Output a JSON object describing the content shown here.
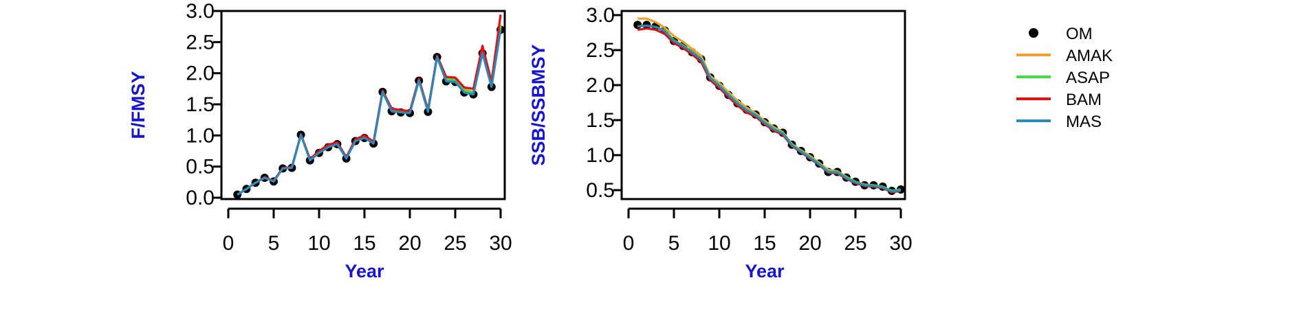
{
  "colors": {
    "axis_title": "#1414d2",
    "OM": "#000000",
    "AMAK": "#f0a030",
    "ASAP": "#44dd44",
    "BAM": "#e01010",
    "MAS": "#2c88b8"
  },
  "legend": {
    "placement": "right",
    "entries": [
      {
        "name": "OM",
        "kind": "point",
        "color_key": "OM"
      },
      {
        "name": "AMAK",
        "kind": "line",
        "color_key": "AMAK"
      },
      {
        "name": "ASAP",
        "kind": "line",
        "color_key": "ASAP"
      },
      {
        "name": "BAM",
        "kind": "line",
        "color_key": "BAM"
      },
      {
        "name": "MAS",
        "kind": "line",
        "color_key": "MAS"
      }
    ]
  },
  "chart_data": [
    {
      "type": "line",
      "xlabel": "Year",
      "ylabel": "F/FMSY",
      "xlim": [
        0,
        30
      ],
      "ylim": [
        0,
        3
      ],
      "xticks": [
        "0",
        "5",
        "10",
        "15",
        "20",
        "25",
        "30"
      ],
      "yticks": [
        "0.0",
        "0.5",
        "1.0",
        "1.5",
        "2.0",
        "2.5",
        "3.0"
      ],
      "grid": false,
      "x": [
        1,
        2,
        3,
        4,
        5,
        6,
        7,
        8,
        9,
        10,
        11,
        12,
        13,
        14,
        15,
        16,
        17,
        18,
        19,
        20,
        21,
        22,
        23,
        24,
        25,
        26,
        27,
        28,
        29,
        30
      ],
      "series": [
        {
          "name": "OM",
          "kind": "point",
          "values": [
            0.05,
            0.14,
            0.24,
            0.32,
            0.26,
            0.47,
            0.48,
            1.01,
            0.6,
            0.72,
            0.81,
            0.86,
            0.63,
            0.91,
            0.96,
            0.87,
            1.7,
            1.39,
            1.37,
            1.36,
            1.88,
            1.38,
            2.26,
            1.87,
            1.86,
            1.69,
            1.66,
            2.32,
            1.78,
            2.7
          ]
        },
        {
          "name": "AMAK",
          "kind": "line",
          "values": [
            0.05,
            0.14,
            0.24,
            0.32,
            0.27,
            0.47,
            0.49,
            1.01,
            0.61,
            0.73,
            0.83,
            0.88,
            0.64,
            0.93,
            0.99,
            0.88,
            1.71,
            1.42,
            1.4,
            1.38,
            1.9,
            1.4,
            2.27,
            1.92,
            1.9,
            1.74,
            1.7,
            2.38,
            1.82,
            2.78
          ]
        },
        {
          "name": "ASAP",
          "kind": "line",
          "values": [
            0.05,
            0.14,
            0.24,
            0.32,
            0.27,
            0.47,
            0.49,
            1.01,
            0.61,
            0.73,
            0.82,
            0.87,
            0.64,
            0.92,
            0.98,
            0.88,
            1.7,
            1.41,
            1.39,
            1.37,
            1.89,
            1.39,
            2.27,
            1.9,
            1.89,
            1.72,
            1.69,
            2.36,
            1.8,
            2.75
          ]
        },
        {
          "name": "BAM",
          "kind": "line",
          "values": [
            0.05,
            0.14,
            0.24,
            0.33,
            0.27,
            0.48,
            0.49,
            1.02,
            0.62,
            0.75,
            0.85,
            0.89,
            0.65,
            0.94,
            1.0,
            0.9,
            1.72,
            1.43,
            1.41,
            1.39,
            1.91,
            1.41,
            2.28,
            1.94,
            1.93,
            1.77,
            1.75,
            2.44,
            1.86,
            2.94
          ]
        },
        {
          "name": "MAS",
          "kind": "line",
          "values": [
            0.05,
            0.14,
            0.24,
            0.32,
            0.26,
            0.47,
            0.48,
            1.01,
            0.6,
            0.72,
            0.81,
            0.86,
            0.63,
            0.91,
            0.96,
            0.87,
            1.7,
            1.39,
            1.37,
            1.36,
            1.88,
            1.38,
            2.26,
            1.87,
            1.86,
            1.69,
            1.66,
            2.32,
            1.78,
            2.7
          ]
        }
      ]
    },
    {
      "type": "line",
      "xlabel": "Year",
      "ylabel": "SSB/SSBMSY",
      "xlim": [
        0,
        30
      ],
      "ylim": [
        0.5,
        3
      ],
      "xticks": [
        "0",
        "5",
        "10",
        "15",
        "20",
        "25",
        "30"
      ],
      "yticks": [
        "0.5",
        "1.0",
        "1.5",
        "2.0",
        "2.5",
        "3.0"
      ],
      "grid": false,
      "x": [
        1,
        2,
        3,
        4,
        5,
        6,
        7,
        8,
        9,
        10,
        11,
        12,
        13,
        14,
        15,
        16,
        17,
        18,
        19,
        20,
        21,
        22,
        23,
        24,
        25,
        26,
        27,
        28,
        29,
        30
      ],
      "series": [
        {
          "name": "OM",
          "kind": "point",
          "values": [
            2.86,
            2.86,
            2.84,
            2.78,
            2.63,
            2.56,
            2.47,
            2.37,
            2.11,
            1.99,
            1.86,
            1.74,
            1.65,
            1.58,
            1.47,
            1.38,
            1.32,
            1.15,
            1.06,
            0.97,
            0.88,
            0.76,
            0.76,
            0.68,
            0.62,
            0.57,
            0.57,
            0.55,
            0.49,
            0.51
          ]
        },
        {
          "name": "AMAK",
          "kind": "line",
          "values": [
            2.95,
            2.95,
            2.9,
            2.82,
            2.7,
            2.62,
            2.52,
            2.42,
            2.13,
            2.03,
            1.9,
            1.78,
            1.68,
            1.6,
            1.49,
            1.4,
            1.33,
            1.16,
            1.07,
            0.99,
            0.89,
            0.79,
            0.77,
            0.69,
            0.62,
            0.58,
            0.57,
            0.55,
            0.49,
            0.5
          ]
        },
        {
          "name": "ASAP",
          "kind": "line",
          "values": [
            2.84,
            2.85,
            2.83,
            2.78,
            2.64,
            2.57,
            2.48,
            2.38,
            2.11,
            2.0,
            1.87,
            1.75,
            1.65,
            1.58,
            1.47,
            1.38,
            1.32,
            1.15,
            1.06,
            0.97,
            0.88,
            0.77,
            0.76,
            0.68,
            0.62,
            0.57,
            0.57,
            0.55,
            0.49,
            0.51
          ]
        },
        {
          "name": "BAM",
          "kind": "line",
          "values": [
            2.79,
            2.81,
            2.79,
            2.73,
            2.6,
            2.53,
            2.44,
            2.33,
            2.07,
            1.96,
            1.83,
            1.71,
            1.61,
            1.55,
            1.44,
            1.35,
            1.29,
            1.13,
            1.04,
            0.95,
            0.86,
            0.75,
            0.74,
            0.66,
            0.6,
            0.56,
            0.55,
            0.53,
            0.47,
            0.49
          ]
        },
        {
          "name": "MAS",
          "kind": "line",
          "values": [
            2.84,
            2.85,
            2.83,
            2.77,
            2.63,
            2.56,
            2.47,
            2.37,
            2.1,
            1.99,
            1.86,
            1.74,
            1.64,
            1.57,
            1.46,
            1.37,
            1.31,
            1.14,
            1.05,
            0.96,
            0.87,
            0.76,
            0.75,
            0.67,
            0.61,
            0.57,
            0.56,
            0.54,
            0.48,
            0.5
          ]
        }
      ]
    }
  ]
}
